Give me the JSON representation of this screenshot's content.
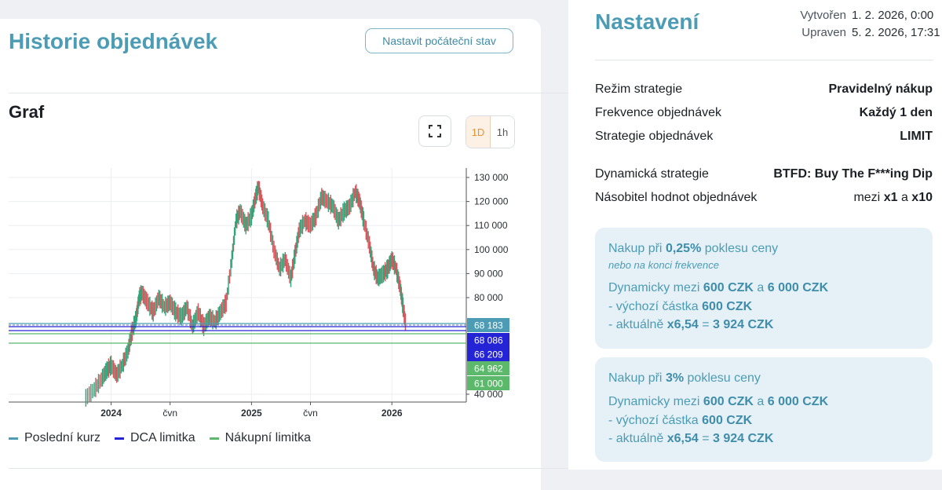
{
  "history": {
    "title": "Historie objednávek",
    "init_button": "Nastavit počáteční stav"
  },
  "graph": {
    "title": "Graf",
    "fullscreen_icon": "fullscreen-icon",
    "timeframes": [
      "1D",
      "1h"
    ],
    "active_timeframe": "1D"
  },
  "legend": [
    {
      "label": "Poslední kurz",
      "color": "#4b9cb4"
    },
    {
      "label": "DCA limitka",
      "color": "#2424d6"
    },
    {
      "label": "Nákupní limitka",
      "color": "#5cb86a"
    }
  ],
  "settings": {
    "title": "Nastavení",
    "created_label": "Vytvořen",
    "created_value": "1. 2. 2026, 0:00",
    "updated_label": "Upraven",
    "updated_value": "5. 2. 2026, 17:31",
    "rows": [
      {
        "label": "Režim strategie",
        "value": "Pravidelný nákup"
      },
      {
        "label": "Frekvence objednávek",
        "value": "Každý 1 den"
      },
      {
        "label": "Strategie objednávek",
        "value": "LIMIT"
      },
      {
        "label": "Dynamická strategie",
        "value": "BTFD: Buy The F***ing Dip"
      }
    ],
    "multiplier": {
      "label": "Násobitel hodnot objednávek",
      "prefix": "mezi",
      "min": "x1",
      "and": "a",
      "max": "x10"
    }
  },
  "boxes": [
    {
      "t1": "Nakup při",
      "pct": "0,25%",
      "t2": "poklesu ceny",
      "sub": "nebo na konci frekvence",
      "dyn": "Dynamicky mezi",
      "min": "600 CZK",
      "and": "a",
      "max": "6 000 CZK",
      "def_label": "- výchozí částka",
      "def_val": "600 CZK",
      "cur_label": "- aktuálně",
      "cur_mult": "x6,54",
      "eq": "=",
      "cur_val": "3 924 CZK"
    },
    {
      "t1": "Nakup při",
      "pct": "3%",
      "t2": "poklesu ceny",
      "dyn": "Dynamicky mezi",
      "min": "600 CZK",
      "and": "a",
      "max": "6 000 CZK",
      "def_label": "- výchozí částka",
      "def_val": "600 CZK",
      "cur_label": "- aktuálně",
      "cur_mult": "x6,54",
      "eq": "=",
      "cur_val": "3 924 CZK"
    }
  ],
  "chart_data": {
    "type": "line",
    "ylim": [
      38000,
      133000
    ],
    "yticks": [
      130000,
      120000,
      110000,
      100000,
      90000,
      80000,
      40000
    ],
    "ytick_labels": [
      "130 000",
      "120 000",
      "110 000",
      "100 000",
      "90 000",
      "80 000",
      "40 000"
    ],
    "xticks": [
      {
        "t": 2024.0,
        "label": "2024",
        "bold": true
      },
      {
        "t": 2024.42,
        "label": "čvn",
        "bold": false
      },
      {
        "t": 2025.0,
        "label": "2025",
        "bold": true
      },
      {
        "t": 2025.42,
        "label": "čvn",
        "bold": false
      },
      {
        "t": 2026.0,
        "label": "2026",
        "bold": true
      }
    ],
    "xlim": [
      2023.27,
      2026.53
    ],
    "series": [
      {
        "t": 2023.82,
        "v": 38500
      },
      {
        "t": 2023.88,
        "v": 42000
      },
      {
        "t": 2023.93,
        "v": 46000
      },
      {
        "t": 2023.97,
        "v": 50000
      },
      {
        "t": 2024.0,
        "v": 52000
      },
      {
        "t": 2024.04,
        "v": 48000
      },
      {
        "t": 2024.08,
        "v": 52000
      },
      {
        "t": 2024.12,
        "v": 58000
      },
      {
        "t": 2024.15,
        "v": 66000
      },
      {
        "t": 2024.18,
        "v": 72000
      },
      {
        "t": 2024.2,
        "v": 80000
      },
      {
        "t": 2024.22,
        "v": 82000
      },
      {
        "t": 2024.26,
        "v": 78000
      },
      {
        "t": 2024.3,
        "v": 74000
      },
      {
        "t": 2024.34,
        "v": 80000
      },
      {
        "t": 2024.38,
        "v": 76000
      },
      {
        "t": 2024.42,
        "v": 78000
      },
      {
        "t": 2024.46,
        "v": 74000
      },
      {
        "t": 2024.5,
        "v": 72000
      },
      {
        "t": 2024.54,
        "v": 76000
      },
      {
        "t": 2024.58,
        "v": 68000
      },
      {
        "t": 2024.62,
        "v": 74000
      },
      {
        "t": 2024.66,
        "v": 68000
      },
      {
        "t": 2024.7,
        "v": 72000
      },
      {
        "t": 2024.74,
        "v": 70000
      },
      {
        "t": 2024.78,
        "v": 74000
      },
      {
        "t": 2024.82,
        "v": 78000
      },
      {
        "t": 2024.86,
        "v": 96000
      },
      {
        "t": 2024.89,
        "v": 112000
      },
      {
        "t": 2024.92,
        "v": 116000
      },
      {
        "t": 2024.96,
        "v": 110000
      },
      {
        "t": 2025.0,
        "v": 114000
      },
      {
        "t": 2025.03,
        "v": 122000
      },
      {
        "t": 2025.05,
        "v": 126000
      },
      {
        "t": 2025.08,
        "v": 118000
      },
      {
        "t": 2025.12,
        "v": 112000
      },
      {
        "t": 2025.16,
        "v": 100000
      },
      {
        "t": 2025.2,
        "v": 92000
      },
      {
        "t": 2025.24,
        "v": 96000
      },
      {
        "t": 2025.28,
        "v": 88000
      },
      {
        "t": 2025.31,
        "v": 98000
      },
      {
        "t": 2025.34,
        "v": 108000
      },
      {
        "t": 2025.38,
        "v": 112000
      },
      {
        "t": 2025.42,
        "v": 110000
      },
      {
        "t": 2025.46,
        "v": 114000
      },
      {
        "t": 2025.5,
        "v": 122000
      },
      {
        "t": 2025.54,
        "v": 120000
      },
      {
        "t": 2025.58,
        "v": 118000
      },
      {
        "t": 2025.62,
        "v": 112000
      },
      {
        "t": 2025.66,
        "v": 116000
      },
      {
        "t": 2025.7,
        "v": 118000
      },
      {
        "t": 2025.74,
        "v": 124000
      },
      {
        "t": 2025.77,
        "v": 120000
      },
      {
        "t": 2025.8,
        "v": 112000
      },
      {
        "t": 2025.84,
        "v": 102000
      },
      {
        "t": 2025.87,
        "v": 92000
      },
      {
        "t": 2025.9,
        "v": 88000
      },
      {
        "t": 2025.94,
        "v": 90000
      },
      {
        "t": 2025.97,
        "v": 92000
      },
      {
        "t": 2026.0,
        "v": 96000
      },
      {
        "t": 2026.03,
        "v": 92000
      },
      {
        "t": 2026.06,
        "v": 84000
      },
      {
        "t": 2026.08,
        "v": 76000
      },
      {
        "t": 2026.1,
        "v": 68183
      }
    ],
    "levels": [
      {
        "value": 68183,
        "label": "68 183",
        "color": "#4b9cb4",
        "name": "Poslední kurz"
      },
      {
        "value": 68086,
        "label": "68 086",
        "color": "#2424d6",
        "name": "DCA limitka"
      },
      {
        "value": 66209,
        "label": "66 209",
        "color": "#2424d6",
        "name": "DCA limitka"
      },
      {
        "value": 64962,
        "label": "64 962",
        "color": "#5cb86a",
        "name": "Nákupní limitka"
      },
      {
        "value": 61000,
        "label": "61 000",
        "color": "#5cb86a",
        "name": "Nákupní limitka"
      }
    ]
  }
}
